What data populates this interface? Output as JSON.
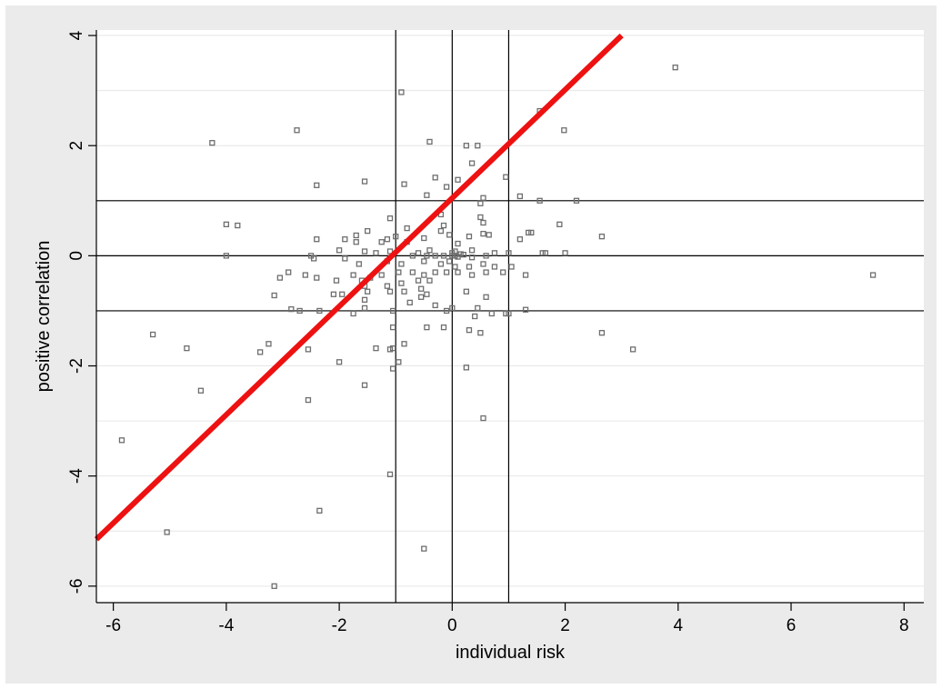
{
  "chart_data": {
    "type": "scatter",
    "title": "",
    "xlabel": "individual risk",
    "ylabel": "positive correlation",
    "xlim": [
      -6.3,
      8.35
    ],
    "ylim": [
      -6.3,
      4.1
    ],
    "xticks": [
      -6,
      -4,
      -2,
      0,
      2,
      4,
      6,
      8
    ],
    "yticks": [
      -6,
      -4,
      -2,
      0,
      2,
      4
    ],
    "grid": {
      "x": false,
      "y": true,
      "y_values": [
        -6,
        -5,
        -4,
        -3,
        -2,
        -1,
        0,
        1,
        2,
        3,
        4
      ]
    },
    "reference_lines": {
      "vertical": [
        -1,
        0,
        1
      ],
      "horizontal": [
        -1,
        0,
        1
      ]
    },
    "fit_line": {
      "color": "#ee1111",
      "points": [
        [
          -6.3,
          -5.15
        ],
        [
          3.0,
          4.0
        ]
      ]
    },
    "marker_color": "#6e6e6e",
    "points": [
      [
        3.95,
        3.42
      ],
      [
        -0.9,
        2.97
      ],
      [
        1.55,
        2.63
      ],
      [
        -2.75,
        2.28
      ],
      [
        1.98,
        2.28
      ],
      [
        -4.25,
        2.05
      ],
      [
        -0.4,
        2.07
      ],
      [
        0.25,
        2.0
      ],
      [
        0.45,
        2.0
      ],
      [
        0.35,
        1.68
      ],
      [
        -0.3,
        1.42
      ],
      [
        0.1,
        1.38
      ],
      [
        0.95,
        1.43
      ],
      [
        -1.55,
        1.35
      ],
      [
        -2.4,
        1.28
      ],
      [
        -0.85,
        1.3
      ],
      [
        -0.1,
        1.25
      ],
      [
        -0.45,
        1.1
      ],
      [
        1.2,
        1.08
      ],
      [
        1.55,
        1.0
      ],
      [
        2.2,
        1.0
      ],
      [
        0.5,
        0.95
      ],
      [
        0.55,
        1.05
      ],
      [
        -0.2,
        0.75
      ],
      [
        0.5,
        0.7
      ],
      [
        -1.1,
        0.68
      ],
      [
        0.55,
        0.6
      ],
      [
        -4.0,
        0.57
      ],
      [
        -3.8,
        0.55
      ],
      [
        1.9,
        0.57
      ],
      [
        -0.8,
        0.5
      ],
      [
        -0.15,
        0.55
      ],
      [
        -0.2,
        0.45
      ],
      [
        0.55,
        0.4
      ],
      [
        -1.5,
        0.45
      ],
      [
        0.65,
        0.38
      ],
      [
        -1.7,
        0.37
      ],
      [
        1.35,
        0.42
      ],
      [
        1.4,
        0.42
      ],
      [
        2.65,
        0.35
      ],
      [
        -2.4,
        0.3
      ],
      [
        -1.9,
        0.3
      ],
      [
        -1.15,
        0.3
      ],
      [
        -1.0,
        0.35
      ],
      [
        -0.5,
        0.32
      ],
      [
        -0.05,
        0.38
      ],
      [
        0.3,
        0.35
      ],
      [
        1.2,
        0.3
      ],
      [
        -1.7,
        0.25
      ],
      [
        -1.25,
        0.25
      ],
      [
        -0.8,
        0.25
      ],
      [
        0.1,
        0.22
      ],
      [
        -2.0,
        0.1
      ],
      [
        -1.55,
        0.08
      ],
      [
        -1.1,
        0.08
      ],
      [
        -0.6,
        0.05
      ],
      [
        -0.4,
        0.1
      ],
      [
        0.05,
        0.08
      ],
      [
        0.35,
        0.1
      ],
      [
        0.75,
        0.05
      ],
      [
        1.0,
        0.05
      ],
      [
        1.6,
        0.05
      ],
      [
        1.65,
        0.05
      ],
      [
        2.0,
        0.05
      ],
      [
        -4.0,
        0.0
      ],
      [
        -2.5,
        0.0
      ],
      [
        -1.9,
        -0.05
      ],
      [
        -1.35,
        0.05
      ],
      [
        -0.7,
        0.0
      ],
      [
        -0.45,
        0.0
      ],
      [
        -0.3,
        0.0
      ],
      [
        -0.15,
        0.0
      ],
      [
        0.0,
        0.0
      ],
      [
        0.0,
        0.05
      ],
      [
        0.05,
        0.0
      ],
      [
        0.1,
        -0.02
      ],
      [
        0.15,
        0.03
      ],
      [
        0.2,
        0.02
      ],
      [
        0.35,
        -0.03
      ],
      [
        0.6,
        0.0
      ],
      [
        -2.45,
        -0.05
      ],
      [
        -1.65,
        -0.15
      ],
      [
        -1.15,
        -0.1
      ],
      [
        -0.9,
        -0.15
      ],
      [
        -0.5,
        -0.1
      ],
      [
        -0.2,
        -0.15
      ],
      [
        -0.05,
        -0.1
      ],
      [
        0.05,
        -0.2
      ],
      [
        0.3,
        -0.2
      ],
      [
        0.55,
        -0.15
      ],
      [
        0.75,
        -0.2
      ],
      [
        1.05,
        -0.2
      ],
      [
        -2.9,
        -0.3
      ],
      [
        -2.6,
        -0.35
      ],
      [
        -2.4,
        -0.4
      ],
      [
        -1.75,
        -0.35
      ],
      [
        -1.6,
        -0.45
      ],
      [
        -1.45,
        -0.4
      ],
      [
        -1.25,
        -0.35
      ],
      [
        -0.95,
        -0.3
      ],
      [
        -0.7,
        -0.3
      ],
      [
        -0.5,
        -0.35
      ],
      [
        -0.3,
        -0.3
      ],
      [
        -0.1,
        -0.3
      ],
      [
        0.1,
        -0.3
      ],
      [
        0.35,
        -0.35
      ],
      [
        0.6,
        -0.3
      ],
      [
        0.9,
        -0.3
      ],
      [
        1.3,
        -0.35
      ],
      [
        -3.05,
        -0.4
      ],
      [
        -2.05,
        -0.45
      ],
      [
        -1.55,
        -0.55
      ],
      [
        -1.15,
        -0.55
      ],
      [
        -0.9,
        -0.5
      ],
      [
        -0.6,
        -0.45
      ],
      [
        -0.4,
        -0.45
      ],
      [
        -0.55,
        -0.6
      ],
      [
        -0.85,
        -0.65
      ],
      [
        -1.1,
        -0.65
      ],
      [
        -1.5,
        -0.65
      ],
      [
        -1.95,
        -0.7
      ],
      [
        -3.15,
        -0.72
      ],
      [
        -2.1,
        -0.7
      ],
      [
        -1.55,
        -0.8
      ],
      [
        -0.45,
        -0.7
      ],
      [
        -0.55,
        -0.75
      ],
      [
        0.25,
        -0.65
      ],
      [
        0.6,
        -0.75
      ],
      [
        -0.75,
        -0.85
      ],
      [
        -0.3,
        -0.9
      ],
      [
        0.0,
        -0.95
      ],
      [
        0.45,
        -0.95
      ],
      [
        -2.7,
        -1.0
      ],
      [
        -2.85,
        -0.97
      ],
      [
        -2.35,
        -1.0
      ],
      [
        -1.75,
        -1.05
      ],
      [
        -1.55,
        -0.95
      ],
      [
        -1.05,
        -1.0
      ],
      [
        -0.1,
        -1.0
      ],
      [
        0.4,
        -1.1
      ],
      [
        0.7,
        -1.05
      ],
      [
        0.95,
        -1.05
      ],
      [
        1.0,
        -1.05
      ],
      [
        1.3,
        -0.98
      ],
      [
        -1.05,
        -1.3
      ],
      [
        -0.45,
        -1.3
      ],
      [
        -0.15,
        -1.3
      ],
      [
        0.3,
        -1.35
      ],
      [
        0.5,
        -1.4
      ],
      [
        -5.3,
        -1.43
      ],
      [
        -3.25,
        -1.6
      ],
      [
        -3.4,
        -1.75
      ],
      [
        -2.55,
        -1.7
      ],
      [
        -4.7,
        -1.68
      ],
      [
        -1.35,
        -1.68
      ],
      [
        -1.05,
        -1.68
      ],
      [
        -1.1,
        -1.7
      ],
      [
        -0.85,
        -1.6
      ],
      [
        -2.0,
        -1.93
      ],
      [
        -0.95,
        -1.93
      ],
      [
        -1.05,
        -2.05
      ],
      [
        0.25,
        -2.03
      ],
      [
        2.65,
        -1.4
      ],
      [
        3.2,
        -1.7
      ],
      [
        -4.45,
        -2.45
      ],
      [
        -1.55,
        -2.35
      ],
      [
        -2.55,
        -2.62
      ],
      [
        0.55,
        -2.95
      ],
      [
        -5.85,
        -3.35
      ],
      [
        -1.1,
        -3.97
      ],
      [
        -2.35,
        -4.63
      ],
      [
        -5.05,
        -5.02
      ],
      [
        -0.5,
        -5.32
      ],
      [
        -3.15,
        -6.0
      ],
      [
        7.45,
        -0.35
      ]
    ]
  }
}
